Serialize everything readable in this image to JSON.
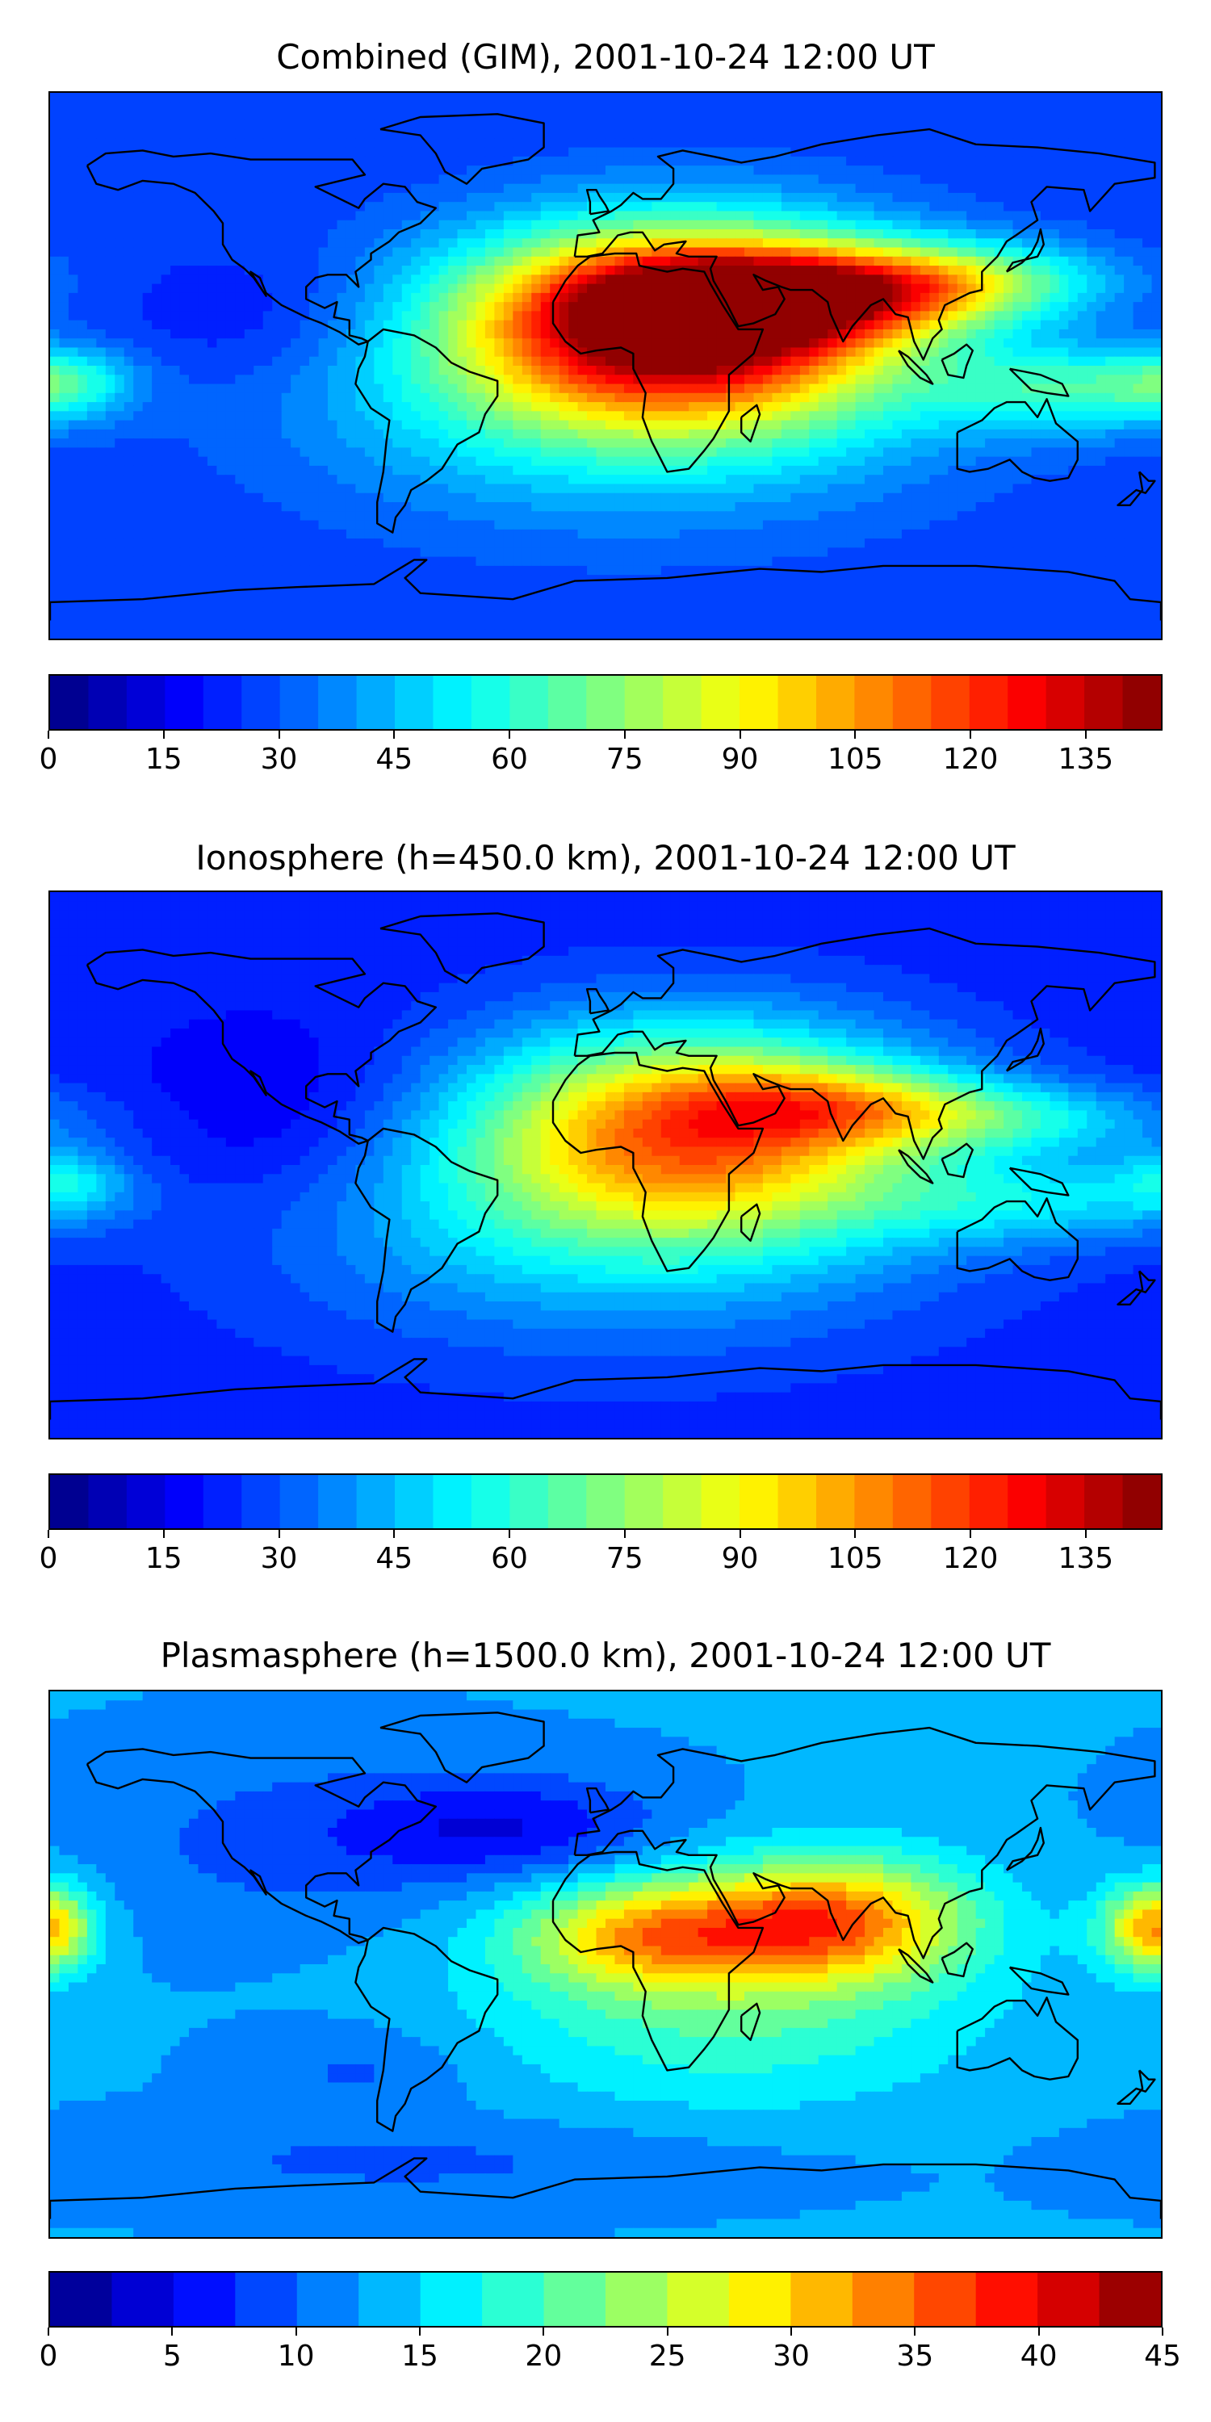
{
  "panels": [
    {
      "id": "combined",
      "title": "Combined (GIM), 2001-10-24 12:00 UT",
      "colorbar": {
        "min": 0,
        "max": 145,
        "levels": 29,
        "ticks": [
          "0",
          "15",
          "30",
          "45",
          "60",
          "75",
          "90",
          "105",
          "120",
          "135"
        ]
      },
      "field": {
        "background": 0.18,
        "blobs": [
          {
            "lon": 25,
            "lat": 15,
            "sx": 48,
            "sy": 22,
            "v": 0.78
          },
          {
            "lon": 55,
            "lat": 22,
            "sx": 40,
            "sy": 10,
            "v": 0.4
          },
          {
            "lon": 110,
            "lat": 28,
            "sx": 35,
            "sy": 9,
            "v": 0.3
          },
          {
            "lon": 150,
            "lat": -8,
            "sx": 30,
            "sy": 10,
            "v": 0.22
          },
          {
            "lon": 5,
            "lat": -10,
            "sx": 70,
            "sy": 28,
            "v": 0.22
          },
          {
            "lon": -175,
            "lat": -5,
            "sx": 15,
            "sy": 8,
            "v": 0.18
          },
          {
            "lon": -110,
            "lat": 15,
            "sx": 30,
            "sy": 15,
            "v": -0.06
          }
        ]
      }
    },
    {
      "id": "ionosphere",
      "title": "Ionosphere  (h=450.0 km), 2001-10-24 12:00 UT",
      "colorbar": {
        "min": 0,
        "max": 145,
        "levels": 29,
        "ticks": [
          "0",
          "15",
          "30",
          "45",
          "60",
          "75",
          "90",
          "105",
          "120",
          "135"
        ]
      },
      "field": {
        "background": 0.15,
        "blobs": [
          {
            "lon": 30,
            "lat": 12,
            "sx": 50,
            "sy": 24,
            "v": 0.52
          },
          {
            "lon": 75,
            "lat": 20,
            "sx": 35,
            "sy": 9,
            "v": 0.22
          },
          {
            "lon": 130,
            "lat": 15,
            "sx": 40,
            "sy": 8,
            "v": 0.18
          },
          {
            "lon": 140,
            "lat": -12,
            "sx": 40,
            "sy": 10,
            "v": 0.16
          },
          {
            "lon": 0,
            "lat": -15,
            "sx": 75,
            "sy": 30,
            "v": 0.2
          },
          {
            "lon": -175,
            "lat": -5,
            "sx": 15,
            "sy": 8,
            "v": 0.16
          },
          {
            "lon": -100,
            "lat": 15,
            "sx": 35,
            "sy": 22,
            "v": -0.08
          }
        ]
      }
    },
    {
      "id": "plasmasphere",
      "title": "Plasmasphere (h=1500.0 km), 2001-10-24 12:00 UT",
      "colorbar": {
        "min": 0,
        "max": 45,
        "levels": 18,
        "ticks": [
          "0",
          "5",
          "10",
          "15",
          "20",
          "25",
          "30",
          "35",
          "40",
          "45"
        ]
      },
      "field": {
        "background": 0.28,
        "blobs": [
          {
            "lon": 75,
            "lat": 15,
            "sx": 30,
            "sy": 14,
            "v": 0.42
          },
          {
            "lon": 15,
            "lat": 10,
            "sx": 30,
            "sy": 12,
            "v": 0.34
          },
          {
            "lon": 175,
            "lat": 12,
            "sx": 12,
            "sy": 10,
            "v": 0.24
          },
          {
            "lon": -180,
            "lat": 12,
            "sx": 10,
            "sy": 10,
            "v": 0.22
          },
          {
            "lon": 40,
            "lat": -10,
            "sx": 55,
            "sy": 25,
            "v": 0.18
          },
          {
            "lon": -30,
            "lat": 45,
            "sx": 35,
            "sy": 12,
            "v": -0.16
          },
          {
            "lon": -100,
            "lat": 40,
            "sx": 45,
            "sy": 20,
            "v": -0.08
          },
          {
            "lon": -80,
            "lat": -35,
            "sx": 25,
            "sy": 10,
            "v": -0.07
          },
          {
            "lon": -60,
            "lat": -65,
            "sx": 80,
            "sy": 10,
            "v": -0.07
          }
        ]
      }
    }
  ]
}
